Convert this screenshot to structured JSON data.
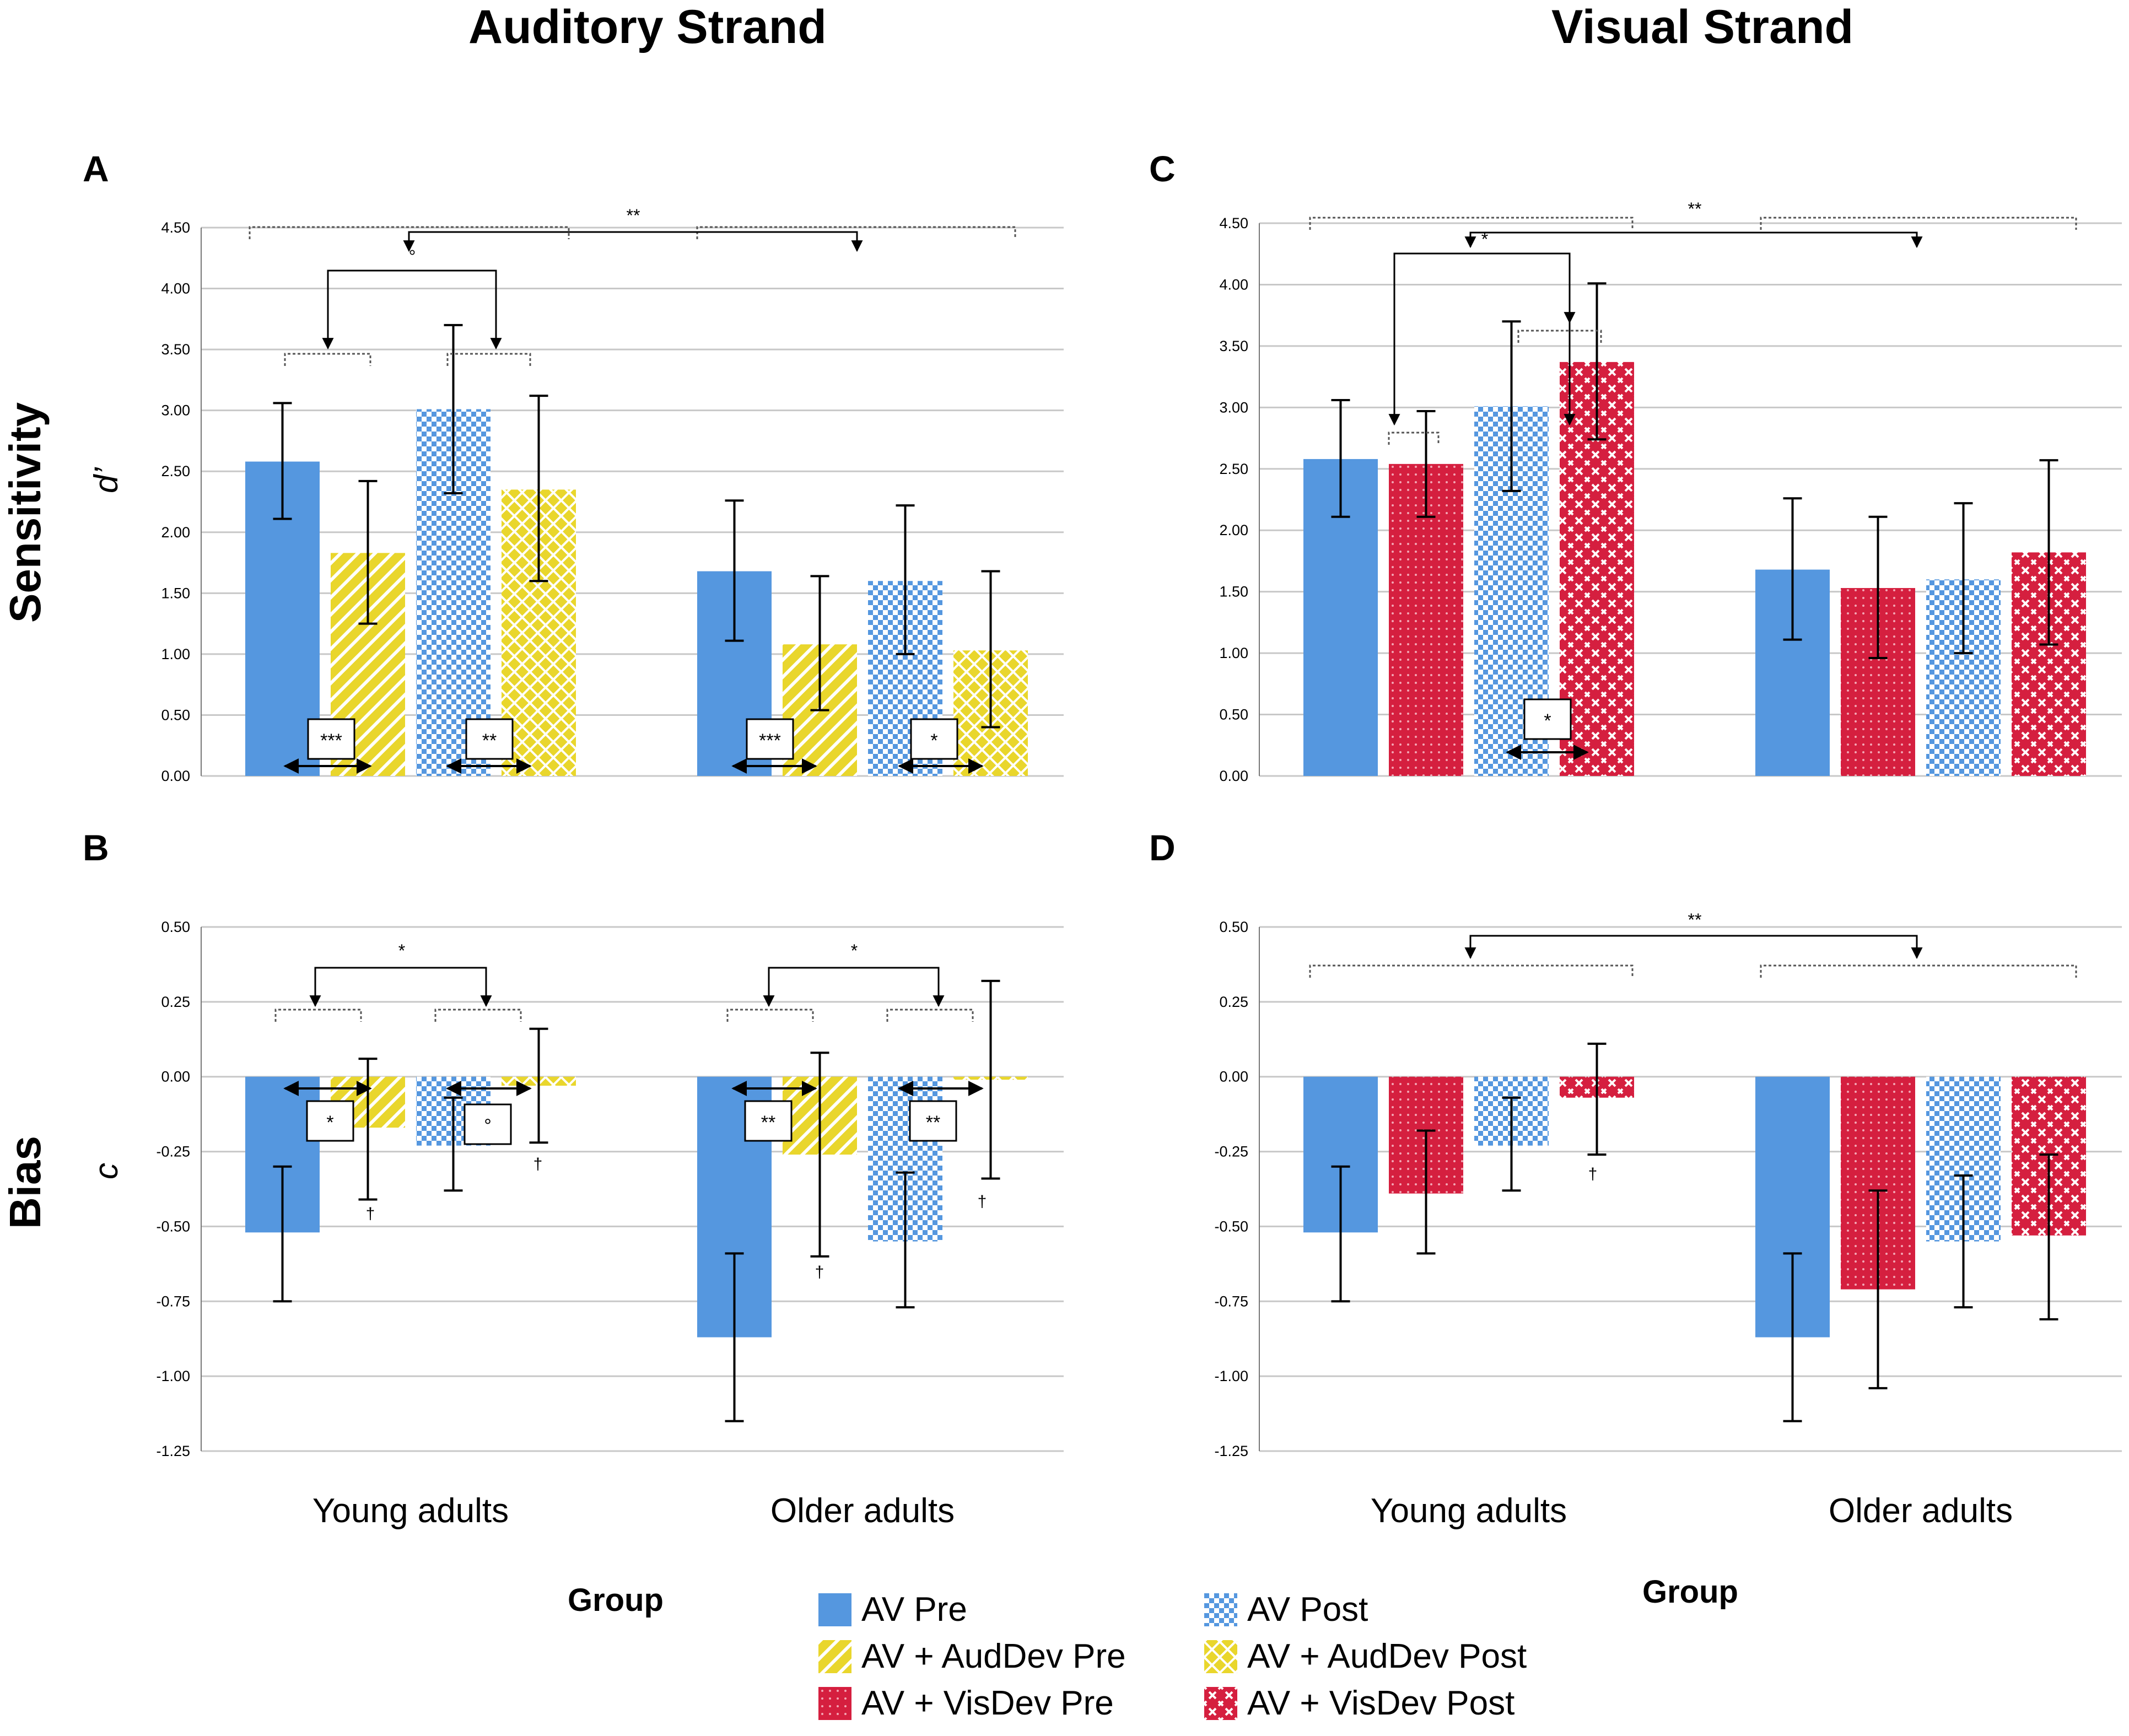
{
  "headers": {
    "auditory_strand": "Auditory Strand",
    "visual_strand": "Visual Strand"
  },
  "row_labels": {
    "top": "Sensitivity",
    "bottom": "Bias"
  },
  "axis_symbols": {
    "top": "d’",
    "bottom": "c"
  },
  "panel_letters": {
    "a": "A",
    "b": "B",
    "c": "C",
    "d": "D"
  },
  "group_titles": {
    "left": "Group",
    "right": "Group"
  },
  "colors": {
    "av_blue": "#5597df",
    "aud_yellow": "#e9d62c",
    "vis_red": "#d51f3f",
    "gridline": "#c8c8c8"
  },
  "legend": [
    {
      "label": "AV Pre",
      "color": "#5597df",
      "pattern": "solid"
    },
    {
      "label": "AV Post",
      "color": "#5597df",
      "pattern": "checker"
    },
    {
      "label": "AV + AudDev Pre",
      "color": "#e9d62c",
      "pattern": "stripes"
    },
    {
      "label": "AV + AudDev Post",
      "color": "#e9d62c",
      "pattern": "crosshatch"
    },
    {
      "label": "AV + VisDev Pre",
      "color": "#d51f3f",
      "pattern": "dots"
    },
    {
      "label": "AV + VisDev Post",
      "color": "#d51f3f",
      "pattern": "crosses"
    }
  ],
  "chart_data": [
    {
      "panel": "A",
      "type": "bar",
      "strand": "Auditory",
      "ylabel": "d’",
      "ylim": [
        0,
        4.5
      ],
      "yticks": [
        "0.00",
        "0.50",
        "1.00",
        "1.50",
        "2.00",
        "2.50",
        "3.00",
        "3.50",
        "4.00",
        "4.50"
      ],
      "categories": [
        "Young adults",
        "Older adults"
      ],
      "series": [
        {
          "name": "AV Pre",
          "values": [
            2.58,
            1.68
          ],
          "err_low": [
            2.11,
            1.11
          ],
          "err_high": [
            3.06,
            2.26
          ]
        },
        {
          "name": "AV + AudDev Pre",
          "values": [
            1.83,
            1.08
          ],
          "err_low": [
            1.25,
            0.54
          ],
          "err_high": [
            2.42,
            1.64
          ]
        },
        {
          "name": "AV Post",
          "values": [
            3.01,
            1.6
          ],
          "err_low": [
            2.32,
            1.0
          ],
          "err_high": [
            3.7,
            2.22
          ]
        },
        {
          "name": "AV + AudDev Post",
          "values": [
            2.35,
            1.03
          ],
          "err_low": [
            1.6,
            0.4
          ],
          "err_high": [
            3.12,
            1.68
          ]
        }
      ],
      "annotations": [
        "**",
        "°",
        "***",
        "**",
        "***",
        "*"
      ]
    },
    {
      "panel": "B",
      "type": "bar",
      "strand": "Auditory",
      "ylabel": "c",
      "ylim": [
        -1.25,
        0.5
      ],
      "yticks": [
        "-1.25",
        "-1.00",
        "-0.75",
        "-0.50",
        "-0.25",
        "0.00",
        "0.25",
        "0.50"
      ],
      "categories": [
        "Young adults",
        "Older adults"
      ],
      "series": [
        {
          "name": "AV Pre",
          "values": [
            -0.52,
            -0.87
          ],
          "err_low": [
            -0.75,
            -1.15
          ],
          "err_high": [
            -0.3,
            -0.59
          ]
        },
        {
          "name": "AV + AudDev Pre",
          "values": [
            -0.17,
            -0.26
          ],
          "err_low": [
            -0.41,
            -0.6
          ],
          "err_high": [
            0.06,
            0.08
          ]
        },
        {
          "name": "AV Post",
          "values": [
            -0.23,
            -0.55
          ],
          "err_low": [
            -0.38,
            -0.77
          ],
          "err_high": [
            -0.07,
            -0.32
          ]
        },
        {
          "name": "AV + AudDev Post",
          "values": [
            -0.03,
            -0.01
          ],
          "err_low": [
            -0.22,
            -0.34
          ],
          "err_high": [
            0.16,
            0.32
          ]
        }
      ],
      "annotations": [
        "*",
        "*",
        "*",
        "°",
        "**",
        "**",
        "†",
        "†",
        "†",
        "†"
      ]
    },
    {
      "panel": "C",
      "type": "bar",
      "strand": "Visual",
      "ylabel": "d’",
      "ylim": [
        0,
        4.5
      ],
      "yticks": [
        "0.00",
        "0.50",
        "1.00",
        "1.50",
        "2.00",
        "2.50",
        "3.00",
        "3.50",
        "4.00",
        "4.50"
      ],
      "categories": [
        "Young adults",
        "Older adults"
      ],
      "series": [
        {
          "name": "AV Pre",
          "values": [
            2.58,
            1.68
          ],
          "err_low": [
            2.11,
            1.11
          ],
          "err_high": [
            3.06,
            2.26
          ]
        },
        {
          "name": "AV + VisDev Pre",
          "values": [
            2.54,
            1.53
          ],
          "err_low": [
            2.11,
            0.96
          ],
          "err_high": [
            2.97,
            2.11
          ]
        },
        {
          "name": "AV Post",
          "values": [
            3.01,
            1.6
          ],
          "err_low": [
            2.32,
            1.0
          ],
          "err_high": [
            3.7,
            2.22
          ]
        },
        {
          "name": "AV + VisDev Post",
          "values": [
            3.37,
            1.82
          ],
          "err_low": [
            2.74,
            1.07
          ],
          "err_high": [
            4.01,
            2.57
          ]
        }
      ],
      "annotations": [
        "**",
        "*",
        "*"
      ]
    },
    {
      "panel": "D",
      "type": "bar",
      "strand": "Visual",
      "ylabel": "c",
      "ylim": [
        -1.25,
        0.5
      ],
      "yticks": [
        "-1.25",
        "-1.00",
        "-0.75",
        "-0.50",
        "-0.25",
        "0.00",
        "0.25",
        "0.50"
      ],
      "categories": [
        "Young adults",
        "Older adults"
      ],
      "series": [
        {
          "name": "AV Pre",
          "values": [
            -0.52,
            -0.87
          ],
          "err_low": [
            -0.75,
            -1.15
          ],
          "err_high": [
            -0.3,
            -0.59
          ]
        },
        {
          "name": "AV + VisDev Pre",
          "values": [
            -0.39,
            -0.71
          ],
          "err_low": [
            -0.59,
            -1.04
          ],
          "err_high": [
            -0.18,
            -0.38
          ]
        },
        {
          "name": "AV Post",
          "values": [
            -0.23,
            -0.55
          ],
          "err_low": [
            -0.38,
            -0.77
          ],
          "err_high": [
            -0.07,
            -0.33
          ]
        },
        {
          "name": "AV + VisDev Post",
          "values": [
            -0.07,
            -0.53
          ],
          "err_low": [
            -0.26,
            -0.81
          ],
          "err_high": [
            0.11,
            -0.26
          ]
        }
      ],
      "annotations": [
        "**",
        "†"
      ]
    }
  ]
}
